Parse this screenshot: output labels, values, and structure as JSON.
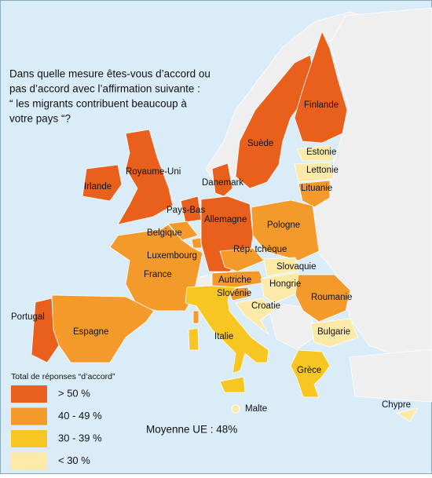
{
  "title": [
    "Dans quelle mesure êtes-vous d’accord ou",
    "pas d’accord avec l’affirmation suivante :",
    "“ les migrants contribuent beaucoup à",
    "votre pays “?"
  ],
  "legend": {
    "title": "Total de réponses “d’accord”",
    "items": [
      {
        "label": "> 50 %",
        "color": "#e8601c"
      },
      {
        "label": "40 - 49 %",
        "color": "#f39a2b"
      },
      {
        "label": "30 - 39 %",
        "color": "#f8c623"
      },
      {
        "label": "< 30 %",
        "color": "#fde9a8"
      }
    ]
  },
  "average": "Moyenne UE : 48%",
  "countries": [
    {
      "name": "Suède",
      "color": "#e8601c"
    },
    {
      "name": "Finlande",
      "color": "#e8601c"
    },
    {
      "name": "Estonie",
      "color": "#fde9a8"
    },
    {
      "name": "Lettonie",
      "color": "#fde9a8"
    },
    {
      "name": "Lituanie",
      "color": "#f39a2b"
    },
    {
      "name": "Royaume-Uni",
      "color": "#e8601c"
    },
    {
      "name": "Irlande",
      "color": "#e8601c"
    },
    {
      "name": "Danemark",
      "color": "#e8601c"
    },
    {
      "name": "Pays-Bas",
      "color": "#e8601c"
    },
    {
      "name": "Allemagne",
      "color": "#e8601c"
    },
    {
      "name": "Pologne",
      "color": "#f39a2b"
    },
    {
      "name": "Belgique",
      "color": "#f39a2b"
    },
    {
      "name": "Luxembourg",
      "color": "#f39a2b"
    },
    {
      "name": "Rép. tchèque",
      "color": "#f39a2b"
    },
    {
      "name": "Slovaquie",
      "color": "#fde9a8"
    },
    {
      "name": "France",
      "color": "#f39a2b"
    },
    {
      "name": "Autriche",
      "color": "#f39a2b"
    },
    {
      "name": "Hongrie",
      "color": "#fde9a8"
    },
    {
      "name": "Slovénie",
      "color": "#f39a2b"
    },
    {
      "name": "Roumanie",
      "color": "#f39a2b"
    },
    {
      "name": "Croatie",
      "color": "#fde9a8"
    },
    {
      "name": "Portugal",
      "color": "#e8601c"
    },
    {
      "name": "Espagne",
      "color": "#f39a2b"
    },
    {
      "name": "Italie",
      "color": "#f8c623"
    },
    {
      "name": "Bulgarie",
      "color": "#fde9a8"
    },
    {
      "name": "Grèce",
      "color": "#f8c623"
    },
    {
      "name": "Malte",
      "color": "#fde9a8"
    },
    {
      "name": "Chypre",
      "color": "#fde9a8"
    }
  ]
}
